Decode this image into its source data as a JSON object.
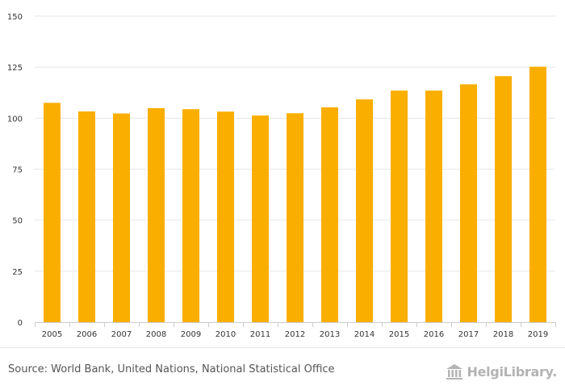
{
  "chart_data": {
    "type": "bar",
    "title": "",
    "xlabel": "",
    "ylabel": "",
    "categories": [
      "2005",
      "2006",
      "2007",
      "2008",
      "2009",
      "2010",
      "2011",
      "2012",
      "2013",
      "2014",
      "2015",
      "2016",
      "2017",
      "2018",
      "2019"
    ],
    "values": [
      107.5,
      103.3,
      102.3,
      104.9,
      104.4,
      103.2,
      101.3,
      102.4,
      105.3,
      109.2,
      113.5,
      113.5,
      116.6,
      120.6,
      125.2
    ],
    "ylim": [
      0,
      150
    ],
    "yticks": [
      "0",
      "25",
      "50",
      "75",
      "100",
      "125",
      "150"
    ],
    "grid": true,
    "bar_color": "#f9ae00",
    "grid_color": "#e6e6e6",
    "axis_color": "#cccccc",
    "tick_label_color": "#333333"
  },
  "footer": {
    "source": "Source: World Bank, United Nations, National Statistical Office",
    "brand": "HelgiLibrary.",
    "brand_icon": "library-columns-icon"
  }
}
